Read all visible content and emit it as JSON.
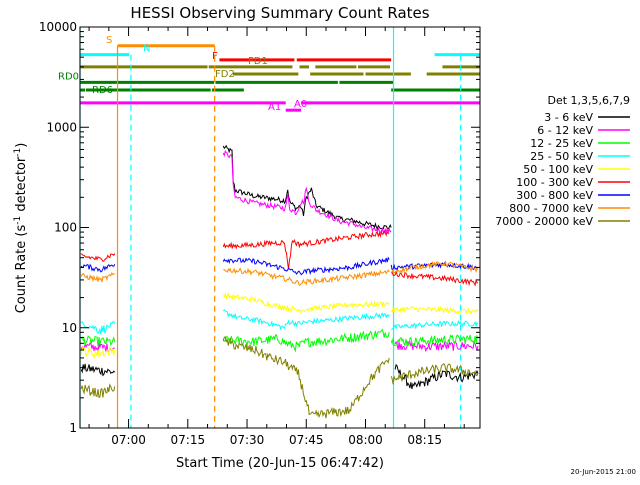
{
  "page": {
    "footer_date": "20-Jun-2015 21:00"
  },
  "chart_data": {
    "type": "line",
    "title": "HESSI Observing Summary Count Rates",
    "xlabel": "Start Time (20-Jun-15 06:47:42)",
    "ylabel_main": "Count Rate (s",
    "ylabel_exp1": "-1",
    "ylabel_mid": " detector",
    "ylabel_exp2": "-1",
    "ylabel_end": ")",
    "x_units": "minutes of day",
    "xlim": [
      407.7,
      509
    ],
    "ylim": [
      1,
      10000
    ],
    "y_scale": "log",
    "x_ticks": [
      {
        "t": 420,
        "label": "07:00"
      },
      {
        "t": 435,
        "label": "07:15"
      },
      {
        "t": 450,
        "label": "07:30"
      },
      {
        "t": 465,
        "label": "07:45"
      },
      {
        "t": 480,
        "label": "08:00"
      },
      {
        "t": 495,
        "label": "08:15"
      }
    ],
    "y_ticks": [
      {
        "v": 1,
        "label": "1"
      },
      {
        "v": 10,
        "label": "10"
      },
      {
        "v": 100,
        "label": "100"
      },
      {
        "v": 1000,
        "label": "1000"
      },
      {
        "v": 10000,
        "label": "10000"
      }
    ],
    "legend": {
      "title": "Det 1,3,5,6,7,9",
      "position": "right",
      "entries": [
        {
          "label": "3 - 6 keV",
          "color": "#000000"
        },
        {
          "label": "6 - 12 keV",
          "color": "#ff00ff"
        },
        {
          "label": "12 - 25 keV",
          "color": "#00ff00"
        },
        {
          "label": "25 - 50 keV",
          "color": "#00ffff"
        },
        {
          "label": "50 - 100 keV",
          "color": "#ffff00"
        },
        {
          "label": "100 - 300 keV",
          "color": "#ff0000"
        },
        {
          "label": "300 - 800 keV",
          "color": "#0000ff"
        },
        {
          "label": "800 - 7000 keV",
          "color": "#ff8c00"
        },
        {
          "label": "7000 - 20000 keV",
          "color": "#808000"
        }
      ]
    },
    "flag_bars": [
      {
        "name": "S",
        "color": "#ff8c00",
        "y": 6500,
        "segments": [
          [
            417.2,
            441.8
          ]
        ]
      },
      {
        "name": "N",
        "color": "#00ffff",
        "y": 5300,
        "segments": [
          [
            407.7,
            420.2
          ],
          [
            497.5,
            509
          ]
        ]
      },
      {
        "name": "F",
        "color": "#ff0000",
        "y": 4700,
        "segments": [
          [
            443,
            462
          ],
          [
            462.6,
            486.5
          ]
        ]
      },
      {
        "name": "FD1",
        "color": "#808000",
        "y": 4000,
        "segments": [
          [
            407.7,
            440
          ],
          [
            440.3,
            461.5
          ],
          [
            463.3,
            465.7
          ],
          [
            467.3,
            477.7
          ],
          [
            478.1,
            486.2
          ],
          [
            499.5,
            509
          ]
        ]
      },
      {
        "name": "FD2",
        "color": "#808000",
        "y": 3400,
        "segments": [
          [
            446.4,
            463
          ],
          [
            466,
            479.5
          ],
          [
            480,
            491.5
          ],
          [
            495.5,
            509
          ]
        ]
      },
      {
        "name": "RD0",
        "color": "#008000",
        "y": 2800,
        "segments": [
          [
            407.7,
            441.7
          ],
          [
            442,
            473
          ],
          [
            473.4,
            487
          ]
        ]
      },
      {
        "name": "RD6",
        "color": "#008000",
        "y": 2350,
        "segments": [
          [
            407.7,
            409
          ],
          [
            409.2,
            440.8
          ],
          [
            441.1,
            449.2
          ],
          [
            486.5,
            509
          ]
        ]
      },
      {
        "name": "A1",
        "color": "#ff00ff",
        "y": 1750,
        "segments": [
          [
            407.7,
            459.8
          ],
          [
            463.7,
            509
          ]
        ]
      },
      {
        "name": "A0",
        "color": "#ff00ff",
        "y": 1480,
        "segments": [
          [
            459.8,
            463.7
          ]
        ]
      }
    ],
    "vlines": [
      {
        "t": 407.7,
        "color": "#00ffff",
        "style": "solid",
        "top": 10000
      },
      {
        "t": 417.2,
        "color": "#ff8c00",
        "style": "solid",
        "top": 6500
      },
      {
        "t": 420.6,
        "color": "#00ffff",
        "style": "dashed",
        "top": 5300
      },
      {
        "t": 441.8,
        "color": "#ff8c00",
        "style": "dashed",
        "top": 6500
      },
      {
        "t": 487.1,
        "color": "#00ffff",
        "style": "solid",
        "top": 10000
      },
      {
        "t": 504.1,
        "color": "#00ffff",
        "style": "dashed",
        "top": 5300
      }
    ],
    "series_segments": [
      {
        "name": "3 - 6 keV",
        "color": "#000000",
        "data": [
          [
            [
              444.0,
              640
            ],
            [
              446.2,
              570
            ],
            [
              446.5,
              290
            ],
            [
              447.0,
              235
            ],
            [
              452.0,
              205
            ],
            [
              456.0,
              195
            ],
            [
              458.0,
              190
            ],
            [
              459.7,
              185
            ],
            [
              460.3,
              240
            ],
            [
              460.8,
              180
            ],
            [
              462.5,
              155
            ],
            [
              463.5,
              165
            ],
            [
              464.3,
              135
            ],
            [
              465.0,
              200
            ],
            [
              466.3,
              240
            ],
            [
              467.5,
              165
            ],
            [
              470.0,
              145
            ],
            [
              473.5,
              122
            ],
            [
              476.5,
              118
            ],
            [
              479.5,
              110
            ],
            [
              483.0,
              103
            ],
            [
              486.5,
              100
            ]
          ],
          [
            [
              408.0,
              4
            ],
            [
              416.5,
              3.6
            ]
          ],
          [
            [
              487.5,
              4
            ],
            [
              492.0,
              2.5
            ],
            [
              496.0,
              3
            ],
            [
              500.0,
              3.5
            ],
            [
              504.0,
              3.2
            ],
            [
              508.5,
              3.5
            ]
          ]
        ]
      },
      {
        "name": "6 - 12 keV",
        "color": "#ff00ff",
        "data": [
          [
            [
              444.0,
              560
            ],
            [
              446.2,
              500
            ],
            [
              446.5,
              255
            ],
            [
              447.0,
              200
            ],
            [
              452.0,
              175
            ],
            [
              456.0,
              165
            ],
            [
              458.0,
              160
            ],
            [
              459.7,
              155
            ],
            [
              460.3,
              210
            ],
            [
              460.8,
              155
            ],
            [
              462.5,
              140
            ],
            [
              463.5,
              175
            ],
            [
              464.5,
              185
            ],
            [
              465.0,
              260
            ],
            [
              465.6,
              180
            ],
            [
              467.5,
              150
            ],
            [
              470.0,
              135
            ],
            [
              473.5,
              115
            ],
            [
              476.5,
              110
            ],
            [
              479.5,
              100
            ],
            [
              483.0,
              95
            ],
            [
              486.5,
              92
            ]
          ],
          [
            [
              408.0,
              6.5
            ],
            [
              416.5,
              6.3
            ]
          ],
          [
            [
              487.5,
              6.8
            ],
            [
              495.0,
              6.5
            ],
            [
              503.0,
              6.6
            ],
            [
              508.5,
              6.6
            ]
          ]
        ]
      },
      {
        "name": "12 - 25 keV",
        "color": "#00ff00",
        "data": [
          [
            [
              408.0,
              7.5
            ],
            [
              416.5,
              7.2
            ]
          ],
          [
            [
              444.0,
              7.5
            ],
            [
              452.0,
              7.3
            ],
            [
              458.0,
              7.8
            ],
            [
              460.5,
              6.8
            ],
            [
              463.0,
              6.5
            ],
            [
              465.0,
              7.2
            ],
            [
              470.0,
              7.5
            ],
            [
              476.0,
              8.0
            ],
            [
              481.0,
              8.5
            ],
            [
              486.0,
              9.0
            ]
          ],
          [
            [
              486.5,
              7.5
            ],
            [
              492.0,
              7.3
            ],
            [
              500.0,
              7.6
            ],
            [
              508.5,
              7.8
            ]
          ]
        ]
      },
      {
        "name": "25 - 50 keV",
        "color": "#00ffff",
        "data": [
          [
            [
              408.0,
              11
            ],
            [
              413.0,
              9.5
            ],
            [
              416.5,
              11
            ]
          ],
          [
            [
              444.0,
              14.5
            ],
            [
              448.0,
              12.5
            ],
            [
              452.0,
              12
            ],
            [
              456.0,
              11
            ],
            [
              459.5,
              10
            ],
            [
              460.5,
              11.5
            ],
            [
              463.0,
              11
            ],
            [
              466.0,
              11.5
            ],
            [
              470.0,
              11.8
            ],
            [
              476.0,
              12.5
            ],
            [
              481.0,
              13
            ],
            [
              486.0,
              13.5
            ]
          ],
          [
            [
              486.5,
              10
            ],
            [
              492.0,
              10.5
            ],
            [
              500.0,
              11
            ],
            [
              508.5,
              11
            ]
          ]
        ]
      },
      {
        "name": "50 - 100 keV",
        "color": "#ffff00",
        "data": [
          [
            [
              408.0,
              6
            ],
            [
              412.0,
              5.5
            ],
            [
              416.5,
              6
            ]
          ],
          [
            [
              444.0,
              21
            ],
            [
              448.0,
              20
            ],
            [
              452.0,
              19
            ],
            [
              456.0,
              17
            ],
            [
              459.5,
              16
            ],
            [
              463.0,
              15
            ],
            [
              466.0,
              15.5
            ],
            [
              470.0,
              16
            ],
            [
              476.0,
              17
            ],
            [
              481.0,
              17
            ],
            [
              486.0,
              17.5
            ]
          ],
          [
            [
              486.5,
              15
            ],
            [
              492.0,
              15.5
            ],
            [
              500.0,
              15
            ],
            [
              508.5,
              14.5
            ]
          ]
        ]
      },
      {
        "name": "100 - 300 keV",
        "color": "#ff0000",
        "data": [
          [
            [
              408.0,
              52
            ],
            [
              413.0,
              48
            ],
            [
              416.5,
              55
            ]
          ],
          [
            [
              444.0,
              65
            ],
            [
              452.0,
              67
            ],
            [
              456.0,
              70
            ],
            [
              459.5,
              71
            ],
            [
              460.5,
              40
            ],
            [
              461.5,
              75
            ],
            [
              463.0,
              68
            ],
            [
              466.0,
              70
            ],
            [
              470.0,
              74
            ],
            [
              476.0,
              80
            ],
            [
              481.0,
              85
            ],
            [
              486.0,
              88
            ]
          ],
          [
            [
              486.5,
              35
            ],
            [
              492.0,
              33
            ],
            [
              500.0,
              31
            ],
            [
              508.5,
              28
            ]
          ]
        ]
      },
      {
        "name": "300 - 800 keV",
        "color": "#0000ff",
        "data": [
          [
            [
              408.0,
              42
            ],
            [
              413.0,
              38
            ],
            [
              416.5,
              43
            ]
          ],
          [
            [
              444.0,
              48
            ],
            [
              452.0,
              46
            ],
            [
              456.0,
              42
            ],
            [
              459.5,
              39
            ],
            [
              463.0,
              35
            ],
            [
              466.0,
              37
            ],
            [
              470.0,
              38
            ],
            [
              476.0,
              40
            ],
            [
              481.0,
              44
            ],
            [
              486.0,
              48
            ]
          ],
          [
            [
              486.5,
              40
            ],
            [
              492.0,
              41
            ],
            [
              500.0,
              43
            ],
            [
              508.5,
              40
            ]
          ]
        ]
      },
      {
        "name": "800 - 7000 keV",
        "color": "#ff8c00",
        "data": [
          [
            [
              408.0,
              33
            ],
            [
              413.0,
              30
            ],
            [
              416.5,
              34
            ]
          ],
          [
            [
              444.0,
              38
            ],
            [
              452.0,
              36
            ],
            [
              456.0,
              33
            ],
            [
              459.5,
              31
            ],
            [
              463.0,
              28
            ],
            [
              466.0,
              29
            ],
            [
              470.0,
              30
            ],
            [
              476.0,
              32
            ],
            [
              481.0,
              34
            ],
            [
              486.0,
              36
            ]
          ],
          [
            [
              486.5,
              36
            ],
            [
              492.0,
              40
            ],
            [
              500.0,
              44
            ],
            [
              508.5,
              38
            ]
          ]
        ]
      },
      {
        "name": "7000 - 20000 keV",
        "color": "#808000",
        "data": [
          [
            [
              408.0,
              2.5
            ],
            [
              413.0,
              2.2
            ],
            [
              416.5,
              2.6
            ]
          ],
          [
            [
              444.0,
              7.5
            ],
            [
              448.0,
              6.5
            ],
            [
              452.0,
              6
            ],
            [
              456.0,
              5
            ],
            [
              459.5,
              4.5
            ],
            [
              463.0,
              3.5
            ],
            [
              466.0,
              1.3
            ],
            [
              470.0,
              1.4
            ],
            [
              476.0,
              1.5
            ],
            [
              481.0,
              3
            ],
            [
              486.0,
              5
            ]
          ],
          [
            [
              486.5,
              3
            ],
            [
              492.0,
              3.5
            ],
            [
              500.0,
              4
            ],
            [
              508.5,
              3.5
            ]
          ]
        ]
      }
    ]
  }
}
